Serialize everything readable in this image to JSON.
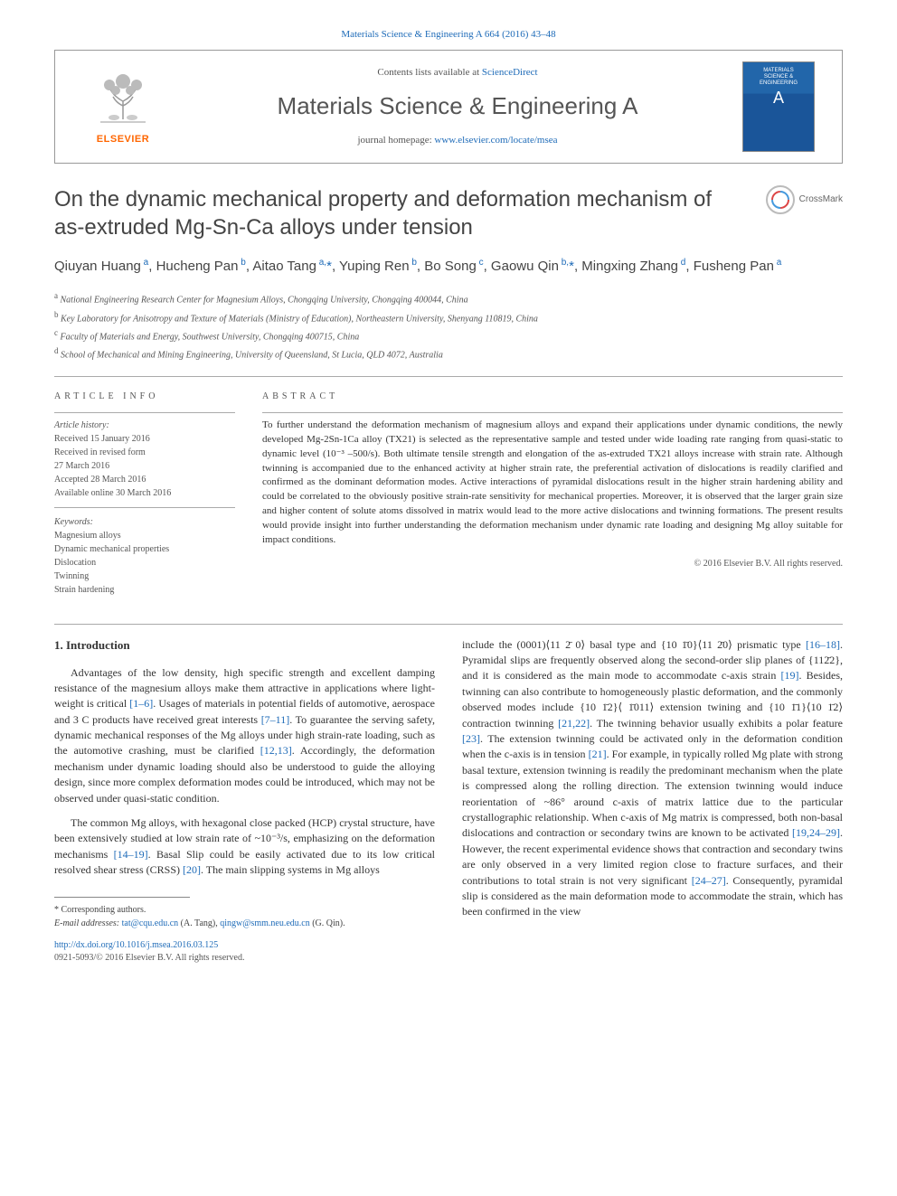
{
  "top_link_prefix": "Materials Science & Engineering A 664 (2016) 43–48",
  "header": {
    "contents_prefix": "Contents lists available at ",
    "contents_link": "ScienceDirect",
    "journal_title": "Materials Science & Engineering A",
    "homepage_prefix": "journal homepage: ",
    "homepage_link": "www.elsevier.com/locate/msea",
    "elsevier": "ELSEVIER",
    "cover_line1": "MATERIALS",
    "cover_line2": "SCIENCE &",
    "cover_line3": "ENGINEERING",
    "cover_letter": "A"
  },
  "paper_title": "On the dynamic mechanical property and deformation mechanism of as-extruded Mg-Sn-Ca alloys under tension",
  "crossmark": "CrossMark",
  "authors_html": "Qiuyan Huang<sup> a</sup>, Hucheng Pan<sup> b</sup>, Aitao Tang<sup> a,</sup><span class='star'>*</span>, Yuping Ren<sup> b</sup>, Bo Song<sup> c</sup>, Gaowu Qin<sup> b,</sup><span class='star'>*</span>, Mingxing Zhang<sup> d</sup>, Fusheng Pan<sup> a</sup>",
  "affiliations": [
    {
      "sup": "a",
      "text": " National Engineering Research Center for Magnesium Alloys, Chongqing University, Chongqing 400044, China"
    },
    {
      "sup": "b",
      "text": " Key Laboratory for Anisotropy and Texture of Materials (Ministry of Education), Northeastern University, Shenyang 110819, China"
    },
    {
      "sup": "c",
      "text": " Faculty of Materials and Energy, Southwest University, Chongqing 400715, China"
    },
    {
      "sup": "d",
      "text": " School of Mechanical and Mining Engineering, University of Queensland, St Lucia, QLD 4072, Australia"
    }
  ],
  "article_info": {
    "heading": "article info",
    "history_label": "Article history:",
    "history": [
      "Received 15 January 2016",
      "Received in revised form",
      "27 March 2016",
      "Accepted 28 March 2016",
      "Available online 30 March 2016"
    ],
    "keywords_label": "Keywords:",
    "keywords": [
      "Magnesium alloys",
      "Dynamic mechanical properties",
      "Dislocation",
      "Twinning",
      "Strain hardening"
    ]
  },
  "abstract": {
    "heading": "abstract",
    "text": "To further understand the deformation mechanism of magnesium alloys and expand their applications under dynamic conditions, the newly developed Mg-2Sn-1Ca alloy (TX21) is selected as the representative sample and tested under wide loading rate ranging from quasi-static to dynamic level (10⁻³ –500/s). Both ultimate tensile strength and elongation of the as-extruded TX21 alloys increase with strain rate. Although twinning is accompanied due to the enhanced activity at higher strain rate, the preferential activation of dislocations is readily clarified and confirmed as the dominant deformation modes. Active interactions of pyramidal dislocations result in the higher strain hardening ability and could be correlated to the obviously positive strain-rate sensitivity for mechanical properties. Moreover, it is observed that the larger grain size and higher content of solute atoms dissolved in matrix would lead to the more active dislocations and twinning formations. The present results would provide insight into further understanding the deformation mechanism under dynamic rate loading and designing Mg alloy suitable for impact conditions.",
    "copyright": "© 2016 Elsevier B.V. All rights reserved."
  },
  "body": {
    "section_heading": "1. Introduction",
    "col1_p1": "Advantages of the low density, high specific strength and excellent damping resistance of the magnesium alloys make them attractive in applications where light-weight is critical [1–6]. Usages of materials in potential fields of automotive, aerospace and 3 C products have received great interests [7–11]. To guarantee the serving safety, dynamic mechanical responses of the Mg alloys under high strain-rate loading, such as the automotive crashing, must be clarified [12,13]. Accordingly, the deformation mechanism under dynamic loading should also be understood to guide the alloying design, since more complex deformation modes could be introduced, which may not be observed under quasi-static condition.",
    "col1_p2": "The common Mg alloys, with hexagonal close packed (HCP) crystal structure, have been extensively studied at low strain rate of ~10⁻³/s, emphasizing on the deformation mechanisms [14–19]. Basal Slip could be easily activated due to its low critical resolved shear stress (CRSS) [20]. The main slipping systems in Mg alloys",
    "col2_p1": "include the (0001)⟨11 2̄ 0⟩ basal <a> type and {10 1̄0}⟨11 2̄0⟩ prismatic <a> type [16–18]. Pyramidal <c+a> slips are frequently observed along the second-order slip planes of {112̄2}, and it is considered as the main mode to accommodate c-axis strain [19]. Besides, twinning can also contribute to homogeneously plastic deformation, and the commonly observed modes include {10 1̄2}⟨ 1̄011⟩ extension twining and {10 1̄1}⟨10 1̄2⟩ contraction twinning [21,22]. The twinning behavior usually exhibits a polar feature [23]. The extension twinning could be activated only in the deformation condition when the c-axis is in tension [21]. For example, in typically rolled Mg plate with strong basal texture, extension twinning is readily the predominant mechanism when the plate is compressed along the rolling direction. The extension twinning would induce reorientation of ~86° around c-axis of matrix lattice due to the particular crystallographic relationship. When c-axis of Mg matrix is compressed, both non-basal dislocations and contraction or secondary twins are known to be activated [19,24–29]. However, the recent experimental evidence shows that contraction and secondary twins are only observed in a very limited region close to fracture surfaces, and their contributions to total strain is not very significant [24–27]. Consequently, pyramidal slip is considered as the main deformation mode to accommodate the strain, which has been confirmed in the view"
  },
  "footnote": {
    "corresponding": "* Corresponding authors.",
    "email_label": "E-mail addresses: ",
    "email1": "tat@cqu.edu.cn",
    "email1_who": " (A. Tang), ",
    "email2": "qingw@smm.neu.edu.cn",
    "email2_who": " (G. Qin)."
  },
  "doi": "http://dx.doi.org/10.1016/j.msea.2016.03.125",
  "issn": "0921-5093/© 2016 Elsevier B.V. All rights reserved.",
  "colors": {
    "link": "#1e6bb8",
    "elsevier_orange": "#ff6600",
    "text": "#333333",
    "muted": "#555555",
    "cover_top": "#2266aa"
  }
}
